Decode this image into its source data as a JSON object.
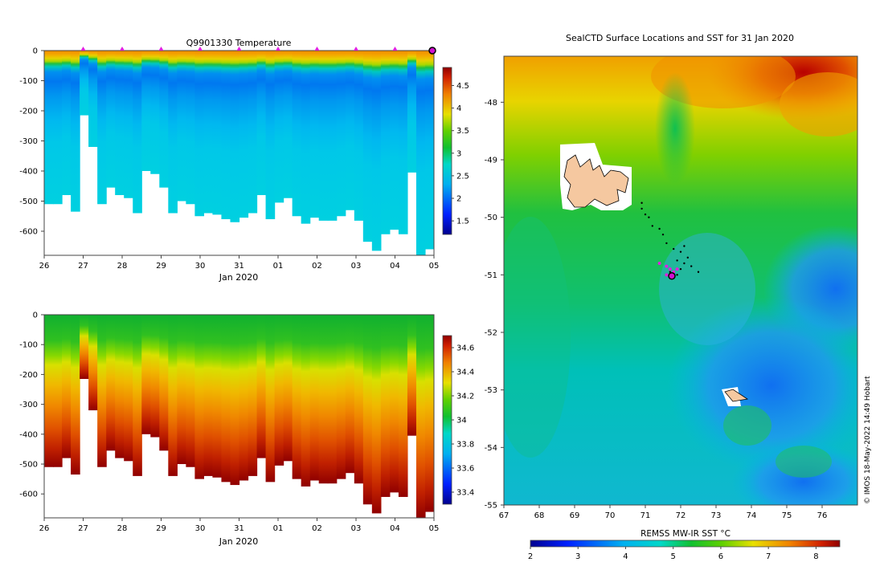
{
  "chart_data": [
    {
      "type": "heatmap",
      "title": "Q9901330  Temperature",
      "variable": "temperature",
      "xlabel": "Jan 2020",
      "ylabel": "",
      "x_ticks": [
        "26",
        "27",
        "28",
        "29",
        "30",
        "31",
        "01",
        "02",
        "03",
        "04",
        "05"
      ],
      "x_range": [
        0,
        10
      ],
      "y_ticks": [
        "0",
        "-100",
        "-200",
        "-300",
        "-400",
        "-500",
        "-600"
      ],
      "y_range": [
        -680,
        0
      ],
      "colorbar": {
        "ticks": [
          "1.5",
          "2",
          "2.5",
          "3",
          "3.5",
          "4",
          "4.5"
        ],
        "range": [
          1.2,
          4.9
        ]
      },
      "surface_markers_days": [
        1,
        2,
        3,
        4,
        5,
        6,
        7,
        8,
        9
      ],
      "current_profile_day": 10,
      "profile_max_depths": [
        -510,
        -510,
        -480,
        -535,
        -215,
        -320,
        -510,
        -455,
        -480,
        -490,
        -540,
        -400,
        -410,
        -455,
        -540,
        -500,
        -510,
        -550,
        -540,
        -545,
        -560,
        -570,
        -555,
        -540,
        -480,
        -560,
        -505,
        -490,
        -550,
        -575,
        -555,
        -565,
        -565,
        -550,
        -530,
        -565,
        -635,
        -665,
        -610,
        -595,
        -610,
        -405,
        -680,
        -660
      ]
    },
    {
      "type": "heatmap",
      "title": "",
      "variable": "salinity",
      "xlabel": "Jan 2020",
      "ylabel": "",
      "x_ticks": [
        "26",
        "27",
        "28",
        "29",
        "30",
        "31",
        "01",
        "02",
        "03",
        "04",
        "05"
      ],
      "x_range": [
        0,
        10
      ],
      "y_ticks": [
        "0",
        "-100",
        "-200",
        "-300",
        "-400",
        "-500",
        "-600"
      ],
      "y_range": [
        -680,
        0
      ],
      "colorbar": {
        "ticks": [
          "33.4",
          "33.6",
          "33.8",
          "34",
          "34.2",
          "34.4",
          "34.6"
        ],
        "range": [
          33.3,
          34.7
        ]
      }
    },
    {
      "type": "heatmap",
      "title": "SealCTD Surface Locations and SST for 31 Jan 2020",
      "xlabel": "",
      "ylabel": "",
      "x_ticks": [
        "67",
        "68",
        "69",
        "70",
        "71",
        "72",
        "73",
        "74",
        "75",
        "76"
      ],
      "x_range": [
        67,
        77
      ],
      "y_ticks": [
        "-48",
        "-49",
        "-50",
        "-51",
        "-52",
        "-53",
        "-54",
        "-55"
      ],
      "y_range": [
        -55,
        -47.2
      ],
      "colorbar": {
        "label": "REMSS MW-IR SST °C",
        "ticks": [
          "2",
          "3",
          "4",
          "5",
          "6",
          "7",
          "8"
        ],
        "range": [
          2,
          8.5
        ]
      },
      "ctd_locations_black": [
        [
          70.9,
          -49.75
        ],
        [
          70.9,
          -49.85
        ],
        [
          71.0,
          -49.95
        ],
        [
          71.1,
          -50.0
        ],
        [
          71.2,
          -50.15
        ],
        [
          71.4,
          -50.2
        ],
        [
          71.5,
          -50.3
        ],
        [
          71.6,
          -50.45
        ],
        [
          71.8,
          -50.55
        ],
        [
          72.0,
          -50.6
        ],
        [
          71.9,
          -50.75
        ],
        [
          72.1,
          -50.8
        ],
        [
          72.0,
          -50.9
        ],
        [
          72.3,
          -50.85
        ],
        [
          72.5,
          -50.95
        ],
        [
          71.7,
          -50.95
        ],
        [
          71.6,
          -51.0
        ],
        [
          71.9,
          -51.0
        ],
        [
          72.2,
          -50.7
        ],
        [
          72.1,
          -50.5
        ]
      ],
      "ctd_locations_magenta": [
        [
          71.4,
          -50.8
        ],
        [
          71.6,
          -50.85
        ],
        [
          71.7,
          -50.9
        ],
        [
          71.8,
          -50.95
        ],
        [
          71.9,
          -50.9
        ],
        [
          71.6,
          -51.0
        ]
      ],
      "current_location": [
        71.75,
        -51.02
      ]
    }
  ],
  "credit": "© IMOS 18-May-2022 14:49 Hobart"
}
